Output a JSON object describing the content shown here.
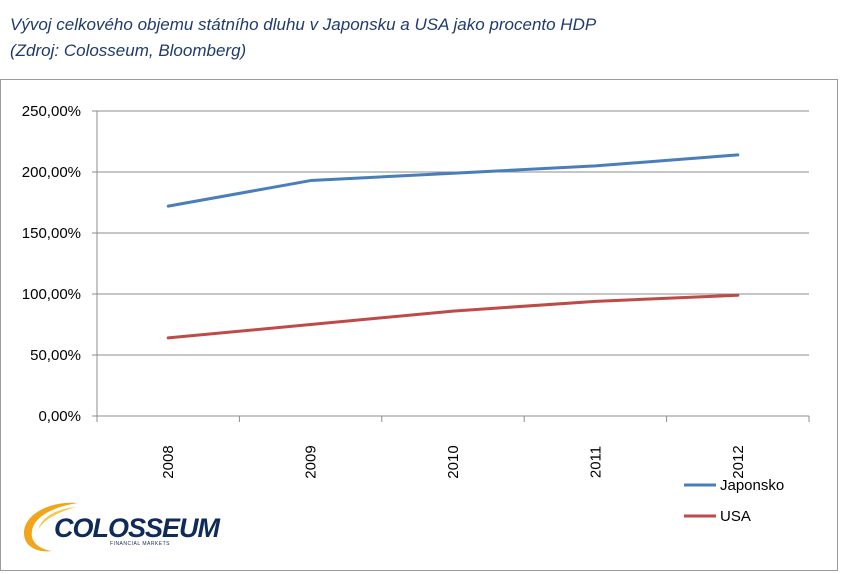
{
  "header": {
    "title": "Vývoj celkového objemu státního dluhu v Japonsku a USA jako procento HDP",
    "source": "(Zdroj: Colosseum, Bloomberg)"
  },
  "logo": {
    "name": "COLOSSEUM",
    "subtitle": "FINANCIAL MARKETS"
  },
  "colors": {
    "japonsko": "#4a7ebb",
    "usa": "#be4b48",
    "grid": "#8c8c8c"
  },
  "chart_data": {
    "type": "line",
    "title": "",
    "xlabel": "",
    "ylabel": "",
    "categories": [
      "2008",
      "2009",
      "2010",
      "2011",
      "2012"
    ],
    "ylim": [
      0,
      2.5
    ],
    "yticks": [
      0,
      0.5,
      1.0,
      1.5,
      2.0,
      2.5
    ],
    "ytick_labels": [
      "0,00%",
      "50,00%",
      "100,00%",
      "150,00%",
      "200,00%",
      "250,00%"
    ],
    "grid": true,
    "legend_position": "bottom-right",
    "series": [
      {
        "name": "Japonsko",
        "values": [
          1.72,
          1.93,
          1.99,
          2.05,
          2.14
        ]
      },
      {
        "name": "USA",
        "values": [
          0.64,
          0.75,
          0.86,
          0.94,
          0.99
        ]
      }
    ]
  }
}
